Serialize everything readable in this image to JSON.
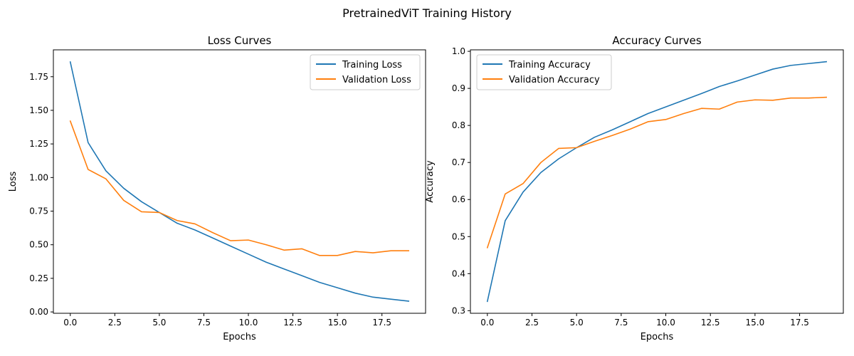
{
  "figure": {
    "suptitle": "PretrainedViT Training History"
  },
  "chart_data": [
    {
      "type": "line",
      "title": "Loss Curves",
      "xlabel": "Epochs",
      "ylabel": "Loss",
      "xlim": [
        -0.95,
        19.95
      ],
      "ylim": [
        -0.01,
        1.95
      ],
      "xticks": [
        0.0,
        2.5,
        5.0,
        7.5,
        10.0,
        12.5,
        15.0,
        17.5
      ],
      "xtick_labels": [
        "0.0",
        "2.5",
        "5.0",
        "7.5",
        "10.0",
        "12.5",
        "15.0",
        "17.5"
      ],
      "yticks": [
        0.0,
        0.25,
        0.5,
        0.75,
        1.0,
        1.25,
        1.5,
        1.75
      ],
      "ytick_labels": [
        "0.00",
        "0.25",
        "0.50",
        "0.75",
        "1.00",
        "1.25",
        "1.50",
        "1.75"
      ],
      "legend_position": "upper right",
      "grid": false,
      "x": [
        0,
        1,
        2,
        3,
        4,
        5,
        6,
        7,
        8,
        9,
        10,
        11,
        12,
        13,
        14,
        15,
        16,
        17,
        18,
        19
      ],
      "series": [
        {
          "name": "Training Loss",
          "color": "#1f77b4",
          "values": [
            1.86,
            1.26,
            1.05,
            0.92,
            0.82,
            0.74,
            0.66,
            0.61,
            0.55,
            0.49,
            0.43,
            0.37,
            0.32,
            0.27,
            0.22,
            0.18,
            0.14,
            0.11,
            0.095,
            0.08
          ]
        },
        {
          "name": "Validation Loss",
          "color": "#ff7f0e",
          "values": [
            1.42,
            1.06,
            0.99,
            0.83,
            0.745,
            0.74,
            0.68,
            0.655,
            0.59,
            0.53,
            0.535,
            0.5,
            0.46,
            0.47,
            0.42,
            0.42,
            0.45,
            0.44,
            0.455,
            0.455
          ]
        }
      ]
    },
    {
      "type": "line",
      "title": "Accuracy Curves",
      "xlabel": "Epochs",
      "ylabel": "Accuracy",
      "xlim": [
        -0.95,
        19.95
      ],
      "ylim": [
        0.293,
        1.004
      ],
      "xticks": [
        0.0,
        2.5,
        5.0,
        7.5,
        10.0,
        12.5,
        15.0,
        17.5
      ],
      "xtick_labels": [
        "0.0",
        "2.5",
        "5.0",
        "7.5",
        "10.0",
        "12.5",
        "15.0",
        "17.5"
      ],
      "yticks": [
        0.3,
        0.4,
        0.5,
        0.6,
        0.7,
        0.8,
        0.9,
        1.0
      ],
      "ytick_labels": [
        "0.3",
        "0.4",
        "0.5",
        "0.6",
        "0.7",
        "0.8",
        "0.9",
        "1.0"
      ],
      "legend_position": "upper left",
      "grid": false,
      "x": [
        0,
        1,
        2,
        3,
        4,
        5,
        6,
        7,
        8,
        9,
        10,
        11,
        12,
        13,
        14,
        15,
        16,
        17,
        18,
        19
      ],
      "series": [
        {
          "name": "Training Accuracy",
          "color": "#1f77b4",
          "values": [
            0.325,
            0.543,
            0.62,
            0.673,
            0.71,
            0.74,
            0.768,
            0.788,
            0.81,
            0.832,
            0.85,
            0.868,
            0.886,
            0.905,
            0.92,
            0.936,
            0.952,
            0.962,
            0.967,
            0.972
          ]
        },
        {
          "name": "Validation Accuracy",
          "color": "#ff7f0e",
          "values": [
            0.47,
            0.615,
            0.643,
            0.7,
            0.738,
            0.74,
            0.757,
            0.773,
            0.79,
            0.81,
            0.816,
            0.832,
            0.846,
            0.844,
            0.863,
            0.869,
            0.868,
            0.874,
            0.874,
            0.876
          ]
        }
      ]
    }
  ]
}
